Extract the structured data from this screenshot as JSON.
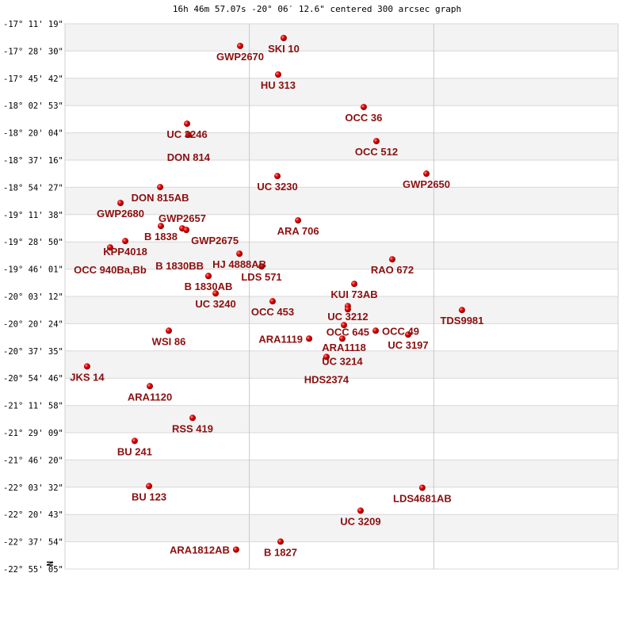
{
  "chart_data": {
    "type": "scatter",
    "title": "16h 46m 57.07s -20° 06′ 12.6\" centered 300 arcsec graph",
    "orientation_label": "N",
    "xlim": [
      0,
      300
    ],
    "ylim": [
      -22.918,
      -17.189
    ],
    "grid": true,
    "x_gridlines": [
      100,
      200
    ],
    "y_tick_labels": [
      "-17° 11' 19\"",
      "-17° 28' 30\"",
      "-17° 45' 42\"",
      "-18° 02' 53\"",
      "-18° 20' 04\"",
      "-18° 37' 16\"",
      "-18° 54' 27\"",
      "-19° 11' 38\"",
      "-19° 28' 50\"",
      "-19° 46' 01\"",
      "-20° 03' 12\"",
      "-20° 20' 24\"",
      "-20° 37' 35\"",
      "-20° 54' 46\"",
      "-21° 11' 58\"",
      "-21° 29' 09\"",
      "-21° 46' 20\"",
      "-22° 03' 32\"",
      "-22° 20' 43\"",
      "-22° 37' 54\"",
      "-22° 55' 05\""
    ],
    "marker_color": "#e00000",
    "label_color": "#8b0f0f",
    "points": [
      {
        "name": "SKI  10",
        "x": 118.6,
        "y": -17.339
      },
      {
        "name": "GWP2670",
        "x": 95.0,
        "y": -17.422
      },
      {
        "name": "HU  313",
        "x": 115.6,
        "y": -17.722
      },
      {
        "name": "OCC  36",
        "x": 162.0,
        "y": -18.064
      },
      {
        "name": "UC 3246",
        "x": 66.2,
        "y": -18.239
      },
      {
        "name": "DON 814",
        "x": 67.0,
        "y": -18.355
      },
      {
        "name": "OCC 512",
        "x": 168.9,
        "y": -18.422
      },
      {
        "name": "GWP2650",
        "x": 196.0,
        "y": -18.764
      },
      {
        "name": "UC 3230",
        "x": 115.2,
        "y": -18.789
      },
      {
        "name": "DON 815AB",
        "x": 51.6,
        "y": -18.905
      },
      {
        "name": "GWP2680",
        "x": 30.1,
        "y": -19.072
      },
      {
        "name": "ARA 706",
        "x": 126.4,
        "y": -19.255
      },
      {
        "name": "B  1838",
        "x": 52.0,
        "y": -19.314
      },
      {
        "name": "GWP2657",
        "x": 63.6,
        "y": -19.339
      },
      {
        "name": "GWP2675",
        "x": 65.8,
        "y": -19.355
      },
      {
        "name": "KPP4018",
        "x": 32.7,
        "y": -19.472
      },
      {
        "name": "OCC 940Ba,Bb",
        "x": 24.5,
        "y": -19.539
      },
      {
        "name": "HJ 4888AB",
        "x": 94.6,
        "y": -19.605
      },
      {
        "name": "LDS 571",
        "x": 106.6,
        "y": -19.739
      },
      {
        "name": "RAO 672",
        "x": 177.5,
        "y": -19.664
      },
      {
        "name": "B  1830AB",
        "x": 77.8,
        "y": -19.839
      },
      {
        "name": "B  1830BB",
        "x": 77.8,
        "y": -19.839
      },
      {
        "name": "UC 3240",
        "x": 81.7,
        "y": -20.022
      },
      {
        "name": "KUI  73AB",
        "x": 156.9,
        "y": -19.922
      },
      {
        "name": "OCC 453",
        "x": 112.6,
        "y": -20.105
      },
      {
        "name": "UC 3212",
        "x": 153.4,
        "y": -20.155
      },
      {
        "name": "OCC 645",
        "x": 153.4,
        "y": -20.189
      },
      {
        "name": "TDS9981",
        "x": 215.3,
        "y": -20.197
      },
      {
        "name": "WSI  86",
        "x": 56.3,
        "y": -20.414
      },
      {
        "name": "OCC  49",
        "x": 168.5,
        "y": -20.414
      },
      {
        "name": "ARA1118",
        "x": 151.3,
        "y": -20.355
      },
      {
        "name": "UC 3197",
        "x": 186.1,
        "y": -20.455
      },
      {
        "name": "ARA1119",
        "x": 132.4,
        "y": -20.497
      },
      {
        "name": "UC 3214",
        "x": 150.4,
        "y": -20.497
      },
      {
        "name": "HDS2374",
        "x": 141.8,
        "y": -20.689
      },
      {
        "name": "JKS  14",
        "x": 12.0,
        "y": -20.789
      },
      {
        "name": "ARA1120",
        "x": 46.0,
        "y": -20.997
      },
      {
        "name": "RSS 419",
        "x": 69.2,
        "y": -21.33
      },
      {
        "name": "BU  241",
        "x": 37.8,
        "y": -21.572
      },
      {
        "name": "BU  123",
        "x": 45.6,
        "y": -22.047
      },
      {
        "name": "LDS4681AB",
        "x": 193.8,
        "y": -22.064
      },
      {
        "name": "UC 3209",
        "x": 160.3,
        "y": -22.305
      },
      {
        "name": "B  1827",
        "x": 116.9,
        "y": -22.63
      },
      {
        "name": "ARA1812AB",
        "x": 92.8,
        "y": -22.714
      }
    ]
  }
}
